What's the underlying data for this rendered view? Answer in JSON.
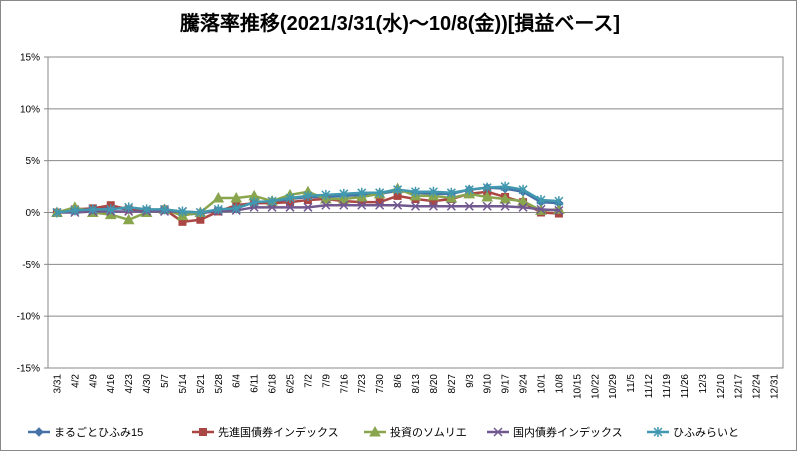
{
  "chart_data": {
    "type": "line",
    "title": "騰落率推移(2021/3/31(水)～10/8(金))[損益ベース]",
    "categories": [
      "3/31",
      "4/2",
      "4/9",
      "4/16",
      "4/23",
      "4/30",
      "5/7",
      "5/14",
      "5/21",
      "5/28",
      "6/4",
      "6/11",
      "6/18",
      "6/25",
      "7/2",
      "7/9",
      "7/16",
      "7/23",
      "7/30",
      "8/6",
      "8/13",
      "8/20",
      "8/27",
      "9/3",
      "9/10",
      "9/17",
      "9/24",
      "10/1",
      "10/8",
      "10/15",
      "10/22",
      "10/29",
      "11/5",
      "11/12",
      "11/19",
      "11/26",
      "12/3",
      "12/10",
      "12/17",
      "12/24",
      "12/31"
    ],
    "series": [
      {
        "name": "まるごとひふみ15",
        "color": "#4572a7",
        "marker": "diamond",
        "values": [
          0,
          0.2,
          0.3,
          0.5,
          0.3,
          0.2,
          0.3,
          -0.2,
          -0.1,
          0.2,
          0.4,
          1,
          1,
          1.3,
          1.5,
          1.5,
          1.6,
          1.7,
          1.8,
          2.1,
          1.9,
          1.8,
          1.8,
          2.2,
          2.4,
          2.3,
          2,
          1,
          0.9,
          null,
          null,
          null,
          null,
          null,
          null,
          null,
          null,
          null,
          null,
          null,
          null
        ]
      },
      {
        "name": "先進国債券インデックス",
        "color": "#aa4643",
        "marker": "square",
        "values": [
          0,
          0.3,
          0.4,
          0.7,
          0.3,
          0.1,
          0.3,
          -0.9,
          -0.7,
          0.1,
          0.7,
          0.9,
          0.9,
          1,
          1.2,
          1.3,
          1.1,
          1,
          1,
          1.6,
          1.3,
          1.1,
          1.3,
          1.8,
          2,
          1.5,
          1,
          0,
          -0.1,
          null,
          null,
          null,
          null,
          null,
          null,
          null,
          null,
          null,
          null,
          null,
          null
        ]
      },
      {
        "name": "投資のソムリエ",
        "color": "#89a54e",
        "marker": "triangle",
        "values": [
          0,
          0.5,
          0,
          -0.2,
          -0.7,
          0,
          0.3,
          -0.3,
          0,
          1.4,
          1.4,
          1.6,
          1.1,
          1.7,
          2,
          1.3,
          1.3,
          1.5,
          1.8,
          2.3,
          1.6,
          1.6,
          1.4,
          1.8,
          1.5,
          1.3,
          1.1,
          0.2,
          0.3,
          null,
          null,
          null,
          null,
          null,
          null,
          null,
          null,
          null,
          null,
          null,
          null
        ]
      },
      {
        "name": "国内債券インデックス",
        "color": "#71588f",
        "marker": "x",
        "values": [
          0,
          0,
          0.1,
          0.1,
          0.1,
          0.1,
          0.1,
          0.1,
          0,
          0.1,
          0.2,
          0.5,
          0.5,
          0.5,
          0.5,
          0.7,
          0.7,
          0.7,
          0.7,
          0.7,
          0.6,
          0.6,
          0.6,
          0.6,
          0.6,
          0.6,
          0.5,
          0.3,
          0.2,
          null,
          null,
          null,
          null,
          null,
          null,
          null,
          null,
          null,
          null,
          null,
          null
        ]
      },
      {
        "name": "ひふみらいと",
        "color": "#4198af",
        "marker": "star",
        "values": [
          0,
          0.2,
          0.3,
          0.3,
          0.5,
          0.3,
          0.3,
          0.1,
          0,
          0.3,
          0.4,
          1,
          1.1,
          1.4,
          1.6,
          1.7,
          1.8,
          1.9,
          1.9,
          2.2,
          2,
          2,
          1.9,
          2.2,
          2.4,
          2.5,
          2.2,
          1.2,
          1.1,
          null,
          null,
          null,
          null,
          null,
          null,
          null,
          null,
          null,
          null,
          null,
          null
        ]
      }
    ],
    "ylim": [
      -15,
      15
    ],
    "yticks": [
      {
        "value": -15,
        "label": "-15%"
      },
      {
        "value": -10,
        "label": "-10%"
      },
      {
        "value": -5,
        "label": "-5%"
      },
      {
        "value": 0,
        "label": "0%"
      },
      {
        "value": 5,
        "label": "5%"
      },
      {
        "value": 10,
        "label": "10%"
      },
      {
        "value": 15,
        "label": "15%"
      }
    ],
    "grid": true,
    "legend": "bottom"
  }
}
